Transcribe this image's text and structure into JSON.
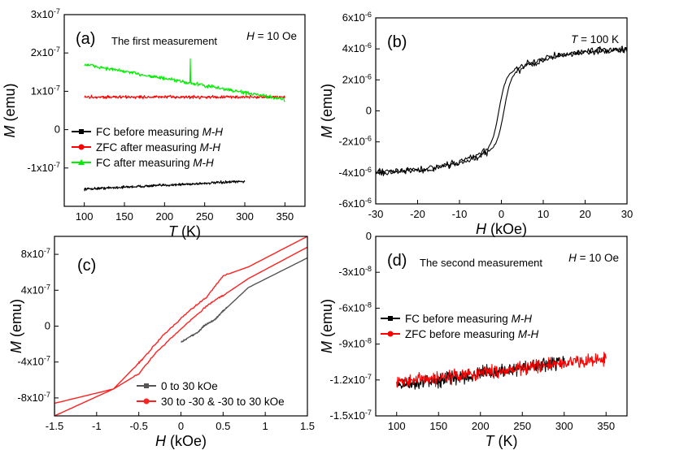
{
  "chart_data": [
    {
      "panel": "(a)",
      "type": "line",
      "annotation_left": "The first measurement",
      "annotation_right": "H = 10 Oe",
      "xlabel": "T (K)",
      "ylabel": "M (emu)",
      "xlim": [
        75,
        375
      ],
      "ylim": [
        -2e-07,
        3e-07
      ],
      "xticks": [
        "100",
        "150",
        "200",
        "250",
        "300",
        "350"
      ],
      "yticks": [
        "-1x10-7",
        "0",
        "1x10-7",
        "2x10-7",
        "3x10-7"
      ],
      "legend_position": "center-left",
      "series": [
        {
          "name": "FC before measuring M-H",
          "color": "#000000",
          "marker": "square",
          "x": [
            100,
            300
          ],
          "y_start": -1.55e-07,
          "y_end": -1.35e-07,
          "noise": 5e-09
        },
        {
          "name": "ZFC after measuring M-H",
          "color": "#ff0000",
          "marker": "circle",
          "x": [
            100,
            350
          ],
          "y_start": 8.5e-08,
          "y_end": 8.5e-08,
          "noise": 6e-09
        },
        {
          "name": "FC after measuring M-H",
          "color": "#00ee00",
          "marker": "triangle",
          "x": [
            100,
            350
          ],
          "y_start": 1.7e-07,
          "y_end": 7.8e-08,
          "noise": 7e-09,
          "spike": {
            "x": 232,
            "y": 1.85e-07
          }
        }
      ]
    },
    {
      "panel": "(b)",
      "type": "line",
      "annotation_right": "T = 100 K",
      "xlabel": "H (kOe)",
      "ylabel": "M (emu)",
      "xlim": [
        -30,
        30
      ],
      "ylim": [
        -6e-06,
        6e-06
      ],
      "xticks": [
        "-30",
        "-20",
        "-10",
        "0",
        "10",
        "20",
        "30"
      ],
      "yticks": [
        "-6x10-6",
        "-4x10-6",
        "-2x10-6",
        "0",
        "2x10-6",
        "4x10-6",
        "6x10-6"
      ],
      "series": [
        {
          "name": "",
          "color": "#000000",
          "shape": "hysteresis",
          "x": [
            -30,
            30
          ],
          "saturation": 4e-06,
          "noise": 3e-07
        }
      ]
    },
    {
      "panel": "(c)",
      "type": "line",
      "xlabel": "H (kOe)",
      "ylabel": "M (emu)",
      "xlim": [
        -1.5,
        1.5
      ],
      "ylim": [
        -1e-06,
        1e-06
      ],
      "xticks": [
        "-1.5",
        "-1",
        "-0.5",
        "0",
        "0.5",
        "1",
        "1.5"
      ],
      "yticks": [
        "-8x10-7",
        "-4x10-7",
        "0",
        "4x10-7",
        "8x10-7"
      ],
      "legend_position": "bottom-right",
      "series": [
        {
          "name": "0 to 30 kOe",
          "color": "#555555",
          "marker": "square",
          "points": [
            [
              0,
              -1.8e-07
            ],
            [
              0.1,
              -1.2e-07
            ],
            [
              0.2,
              -7e-08
            ],
            [
              0.25,
              -2e-08
            ],
            [
              0.3,
              2e-08
            ],
            [
              0.4,
              7e-08
            ],
            [
              0.45,
              1.2e-07
            ],
            [
              0.5,
              1.7e-07
            ],
            [
              0.55,
              2.1e-07
            ],
            [
              0.8,
              4.3e-07
            ],
            [
              1.5,
              7.6e-07
            ]
          ]
        },
        {
          "name": "30 to -30 & -30 to 30 kOe",
          "color": "#ff2020",
          "marker": "circle",
          "points": [
            [
              1.5,
              1e-06
            ],
            [
              0.8,
              6.6e-07
            ],
            [
              0.5,
              5.6e-07
            ],
            [
              0.3,
              3.2e-07
            ],
            [
              0.1,
              1.7e-07
            ],
            [
              -0.2,
              -9e-08
            ],
            [
              -0.45,
              -3.6e-07
            ],
            [
              -0.5,
              -4.1e-07
            ],
            [
              -0.8,
              -7e-07
            ],
            [
              -1.5,
              -1e-06
            ],
            [
              -1.5,
              -8.6e-07
            ],
            [
              -0.8,
              -7e-07
            ],
            [
              -0.5,
              -5.3e-07
            ],
            [
              -0.3,
              -3e-07
            ],
            [
              0.0,
              -3e-08
            ],
            [
              0.3,
              2.2e-07
            ],
            [
              0.45,
              3.2e-07
            ],
            [
              0.5,
              3.4e-07
            ],
            [
              0.8,
              5.3e-07
            ],
            [
              1.5,
              8.8e-07
            ]
          ]
        }
      ]
    },
    {
      "panel": "(d)",
      "type": "line",
      "annotation_left": "The second measurement",
      "annotation_right": "H = 10 Oe",
      "xlabel": "T (K)",
      "ylabel": "M (emu)",
      "xlim": [
        75,
        375
      ],
      "ylim": [
        -1.5e-07,
        0
      ],
      "xticks": [
        "100",
        "150",
        "200",
        "250",
        "300",
        "350"
      ],
      "yticks": [
        "-1.5x10-7",
        "-1.2x10-7",
        "-9x10-8",
        "-6x10-8",
        "-3x10-8",
        "0"
      ],
      "legend_position": "upper-left",
      "series": [
        {
          "name": "FC before measuring M-H",
          "color": "#000000",
          "marker": "square",
          "x": [
            100,
            300
          ],
          "y_start": -1.25e-07,
          "y_end": -1.05e-07,
          "noise": 8e-09
        },
        {
          "name": "ZFC before measuring M-H",
          "color": "#ff0000",
          "marker": "circle",
          "x": [
            100,
            350
          ],
          "y_start": -1.22e-07,
          "y_end": -1.02e-07,
          "noise": 8e-09
        }
      ]
    }
  ]
}
